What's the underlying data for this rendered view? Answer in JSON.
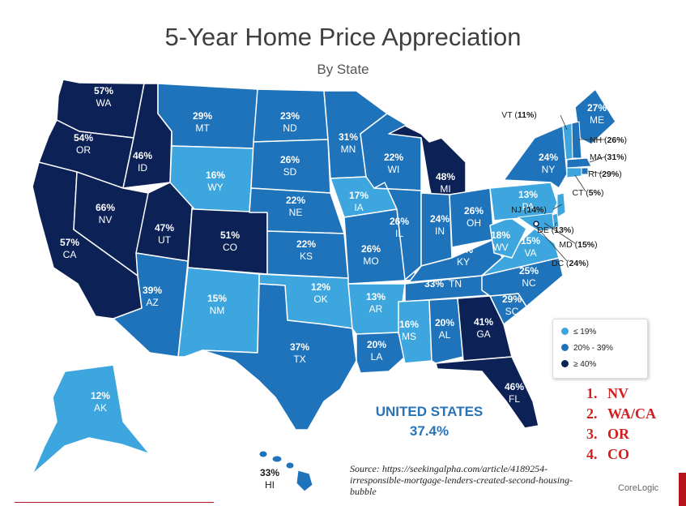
{
  "title": "5-Year Home Price Appreciation",
  "subtitle": "By State",
  "states": [
    {
      "abbr": "WA",
      "pct": "57%",
      "tier": "high"
    },
    {
      "abbr": "OR",
      "pct": "54%",
      "tier": "high"
    },
    {
      "abbr": "CA",
      "pct": "57%",
      "tier": "high"
    },
    {
      "abbr": "ID",
      "pct": "46%",
      "tier": "high"
    },
    {
      "abbr": "NV",
      "pct": "66%",
      "tier": "high"
    },
    {
      "abbr": "UT",
      "pct": "47%",
      "tier": "high"
    },
    {
      "abbr": "AZ",
      "pct": "39%",
      "tier": "mid"
    },
    {
      "abbr": "MT",
      "pct": "29%",
      "tier": "mid"
    },
    {
      "abbr": "WY",
      "pct": "16%",
      "tier": "low"
    },
    {
      "abbr": "CO",
      "pct": "51%",
      "tier": "high"
    },
    {
      "abbr": "NM",
      "pct": "15%",
      "tier": "low"
    },
    {
      "abbr": "ND",
      "pct": "23%",
      "tier": "mid"
    },
    {
      "abbr": "SD",
      "pct": "26%",
      "tier": "mid"
    },
    {
      "abbr": "NE",
      "pct": "22%",
      "tier": "mid"
    },
    {
      "abbr": "KS",
      "pct": "22%",
      "tier": "mid"
    },
    {
      "abbr": "OK",
      "pct": "12%",
      "tier": "low"
    },
    {
      "abbr": "TX",
      "pct": "37%",
      "tier": "mid"
    },
    {
      "abbr": "MN",
      "pct": "31%",
      "tier": "mid"
    },
    {
      "abbr": "IA",
      "pct": "17%",
      "tier": "low"
    },
    {
      "abbr": "MO",
      "pct": "26%",
      "tier": "mid"
    },
    {
      "abbr": "AR",
      "pct": "13%",
      "tier": "low"
    },
    {
      "abbr": "LA",
      "pct": "20%",
      "tier": "mid"
    },
    {
      "abbr": "WI",
      "pct": "22%",
      "tier": "mid"
    },
    {
      "abbr": "IL",
      "pct": "26%",
      "tier": "mid"
    },
    {
      "abbr": "MI",
      "pct": "48%",
      "tier": "high"
    },
    {
      "abbr": "IN",
      "pct": "24%",
      "tier": "mid"
    },
    {
      "abbr": "OH",
      "pct": "26%",
      "tier": "mid"
    },
    {
      "abbr": "KY",
      "pct": "21%",
      "tier": "mid"
    },
    {
      "abbr": "TN",
      "pct": "33%",
      "tier": "mid"
    },
    {
      "abbr": "MS",
      "pct": "16%",
      "tier": "low"
    },
    {
      "abbr": "AL",
      "pct": "20%",
      "tier": "mid"
    },
    {
      "abbr": "GA",
      "pct": "41%",
      "tier": "high"
    },
    {
      "abbr": "FL",
      "pct": "46%",
      "tier": "high"
    },
    {
      "abbr": "SC",
      "pct": "29%",
      "tier": "mid"
    },
    {
      "abbr": "NC",
      "pct": "25%",
      "tier": "mid"
    },
    {
      "abbr": "VA",
      "pct": "15%",
      "tier": "low"
    },
    {
      "abbr": "WV",
      "pct": "18%",
      "tier": "low"
    },
    {
      "abbr": "PA",
      "pct": "13%",
      "tier": "low"
    },
    {
      "abbr": "NY",
      "pct": "24%",
      "tier": "mid"
    },
    {
      "abbr": "ME",
      "pct": "27%",
      "tier": "mid"
    },
    {
      "abbr": "AK",
      "pct": "12%",
      "tier": "low"
    },
    {
      "abbr": "HI",
      "pct": "33%",
      "tier": "mid"
    }
  ],
  "callouts": [
    {
      "abbr": "VT",
      "pct": "11%"
    },
    {
      "abbr": "NH",
      "pct": "26%"
    },
    {
      "abbr": "MA",
      "pct": "31%"
    },
    {
      "abbr": "RI",
      "pct": "29%"
    },
    {
      "abbr": "CT",
      "pct": "5%"
    },
    {
      "abbr": "NJ",
      "pct": "14%"
    },
    {
      "abbr": "DE",
      "pct": "13%"
    },
    {
      "abbr": "MD",
      "pct": "15%"
    },
    {
      "abbr": "DC",
      "pct": "24%"
    }
  ],
  "legend": [
    {
      "label": "≤ 19%",
      "color": "#3ea6de"
    },
    {
      "label": "20% - 39%",
      "color": "#1f73bb"
    },
    {
      "label": "≥ 40%",
      "color": "#0c2257"
    }
  ],
  "colors": {
    "low": "#3ea6de",
    "mid": "#1f73bb",
    "high": "#0c2257",
    "ranking": "#d21f1f"
  },
  "us_total": {
    "label": "UNITED STATES",
    "value": "37.4%"
  },
  "ranking": [
    {
      "num": "1.",
      "label": "NV"
    },
    {
      "num": "2.",
      "label": "WA/CA"
    },
    {
      "num": "3.",
      "label": "OR"
    },
    {
      "num": "4.",
      "label": "CO"
    }
  ],
  "source": "Source: https://seekingalpha.com/article/4189254-irresponsible-mortgage-lenders-created-second-housing-bubble",
  "brand": "CoreLogic"
}
